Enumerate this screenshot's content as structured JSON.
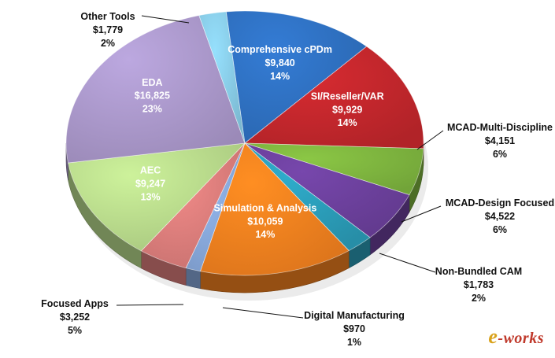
{
  "chart_data": {
    "type": "pie",
    "title": "",
    "slices": [
      {
        "name": "Comprehensive cPDm",
        "value": "$9,840",
        "percent": "14%",
        "color": "#2e6fbe",
        "inside": true
      },
      {
        "name": "SI/Reseller/VAR",
        "value": "$9,929",
        "percent": "14%",
        "color": "#c0262c",
        "inside": true
      },
      {
        "name": "MCAD-Multi-Discipline",
        "value": "$4,151",
        "percent": "6%",
        "color": "#7cb23e",
        "inside": false
      },
      {
        "name": "MCAD-Design Focused",
        "value": "$4,522",
        "percent": "6%",
        "color": "#6a3f9a",
        "inside": false
      },
      {
        "name": "Non-Bundled CAM",
        "value": "$1,783",
        "percent": "2%",
        "color": "#2a9ab5",
        "inside": false
      },
      {
        "name": "Simulation & Analysis",
        "value": "$10,059",
        "percent": "14%",
        "color": "#f07f1e",
        "inside": true
      },
      {
        "name": "Digital Manufacturing",
        "value": "$970",
        "percent": "1%",
        "color": "#86a6d8",
        "inside": false
      },
      {
        "name": "Focused Apps",
        "value": "$3,252",
        "percent": "5%",
        "color": "#d97c7a",
        "inside": false
      },
      {
        "name": "AEC",
        "value": "$9,247",
        "percent": "13%",
        "color": "#b7d88a",
        "inside": true
      },
      {
        "name": "EDA",
        "value": "$16,825",
        "percent": "23%",
        "color": "#a896c8",
        "inside": true
      },
      {
        "name": "Other Tools",
        "value": "$1,779",
        "percent": "2%",
        "color": "#86c8e2",
        "inside": false
      }
    ]
  },
  "watermark": {
    "prefix": "e",
    "text": "-works"
  }
}
